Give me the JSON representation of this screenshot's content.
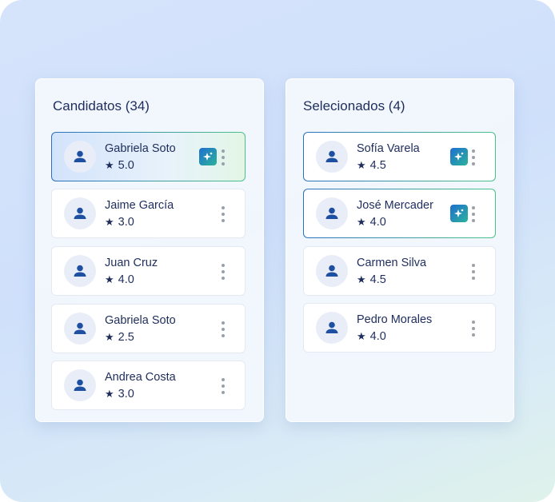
{
  "candidates": {
    "title": "Candidatos (34)",
    "items": [
      {
        "name": "Gabriela Soto",
        "rating": "5.0",
        "ai": true,
        "highlight": "gradient"
      },
      {
        "name": "Jaime García",
        "rating": "3.0",
        "ai": false
      },
      {
        "name": "Juan Cruz",
        "rating": "4.0",
        "ai": false
      },
      {
        "name": "Gabriela Soto",
        "rating": "2.5",
        "ai": false
      },
      {
        "name": "Andrea Costa",
        "rating": "3.0",
        "ai": false
      }
    ]
  },
  "selected": {
    "title": "Selecionados (4)",
    "items": [
      {
        "name": "Sofía Varela",
        "rating": "4.5",
        "ai": true,
        "highlight": "border"
      },
      {
        "name": "José Mercader",
        "rating": "4.0",
        "ai": true,
        "highlight": "border"
      },
      {
        "name": "Carmen Silva",
        "rating": "4.5",
        "ai": false
      },
      {
        "name": "Pedro Morales",
        "rating": "4.0",
        "ai": false
      }
    ]
  },
  "icons": {
    "avatar": "user-icon",
    "rating": "star-icon",
    "ai": "sparkle-icon",
    "menu": "more-vertical-icon"
  },
  "colors": {
    "text": "#1e2d5c",
    "accent_start": "#2a6fc0",
    "accent_end": "#4cc28a"
  }
}
